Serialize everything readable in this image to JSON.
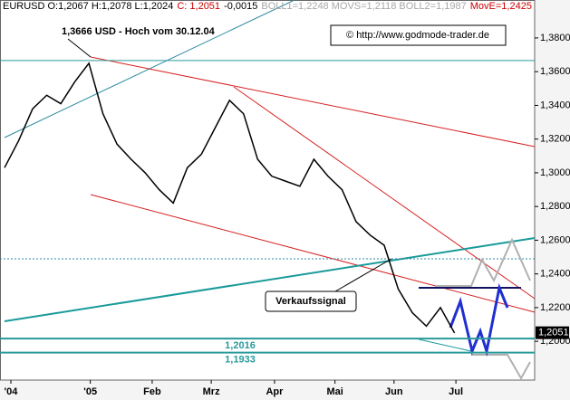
{
  "chart_data": {
    "type": "line",
    "header": [
      {
        "text": "EURUSD O:1,2067 H:1,2078 L:1,2024",
        "color": "#000000"
      },
      {
        "text": "C: 1,2051",
        "color": "#cc0000"
      },
      {
        "text": "-0,0015",
        "color": "#000000"
      },
      {
        "text": "BOLL1=1,2248 MOVS=1,2118 BOLL2=1,1987",
        "color": "#a8a8a8"
      },
      {
        "text": "MovE=1,2425",
        "color": "#cc0000"
      }
    ],
    "high_annotation": "1,3666 USD - Hoch vom 30.12.04",
    "copyright": "© http://www.godmode-trader.de",
    "signal_annotation": "Verkaufssignal",
    "last_price": {
      "value": 1.2051,
      "label": "1,2051"
    },
    "color": "#000000",
    "values": [
      1.303,
      1.319,
      1.338,
      1.346,
      1.341,
      1.354,
      1.365,
      1.335,
      1.317,
      1.308,
      1.3,
      1.29,
      1.282,
      1.303,
      1.311,
      1.327,
      1.343,
      1.335,
      1.308,
      1.298,
      1.295,
      1.292,
      1.308,
      1.298,
      1.29,
      1.271,
      1.263,
      1.257,
      1.231,
      1.217,
      1.209,
      1.22,
      1.205
    ],
    "levels": [
      {
        "value": 1.3666,
        "color": "#2a9a9a"
      },
      {
        "value": 1.2016,
        "label": "1,2016",
        "color": "#2a9a9a"
      },
      {
        "value": 1.1933,
        "label": "1,1933",
        "color": "#2a9a9a"
      }
    ],
    "xlim": [
      0,
      37.7
    ],
    "xticks": [
      {
        "value": 0.45,
        "label": "'04"
      },
      {
        "value": 6.1,
        "label": "'05"
      },
      {
        "value": 10.5,
        "label": "Feb"
      },
      {
        "value": 14.7,
        "label": "Mrz"
      },
      {
        "value": 19.2,
        "label": "Apr"
      },
      {
        "value": 23.5,
        "label": "Mai"
      },
      {
        "value": 27.7,
        "label": "Jun"
      },
      {
        "value": 32.1,
        "label": "Jul"
      }
    ],
    "ylim": [
      1.177,
      1.395
    ],
    "yticks": [
      {
        "value": 1.38,
        "label": "1,3800"
      },
      {
        "value": 1.36,
        "label": "1,3600"
      },
      {
        "value": 1.34,
        "label": "1,3400"
      },
      {
        "value": 1.32,
        "label": "1,3200"
      },
      {
        "value": 1.3,
        "label": "1,3000"
      },
      {
        "value": 1.28,
        "label": "1,2800"
      },
      {
        "value": 1.26,
        "label": "1,2600"
      },
      {
        "value": 1.24,
        "label": "1,2400"
      },
      {
        "value": 1.22,
        "label": "1,2200"
      },
      {
        "value": 1.2,
        "label": "1,2000"
      }
    ]
  }
}
